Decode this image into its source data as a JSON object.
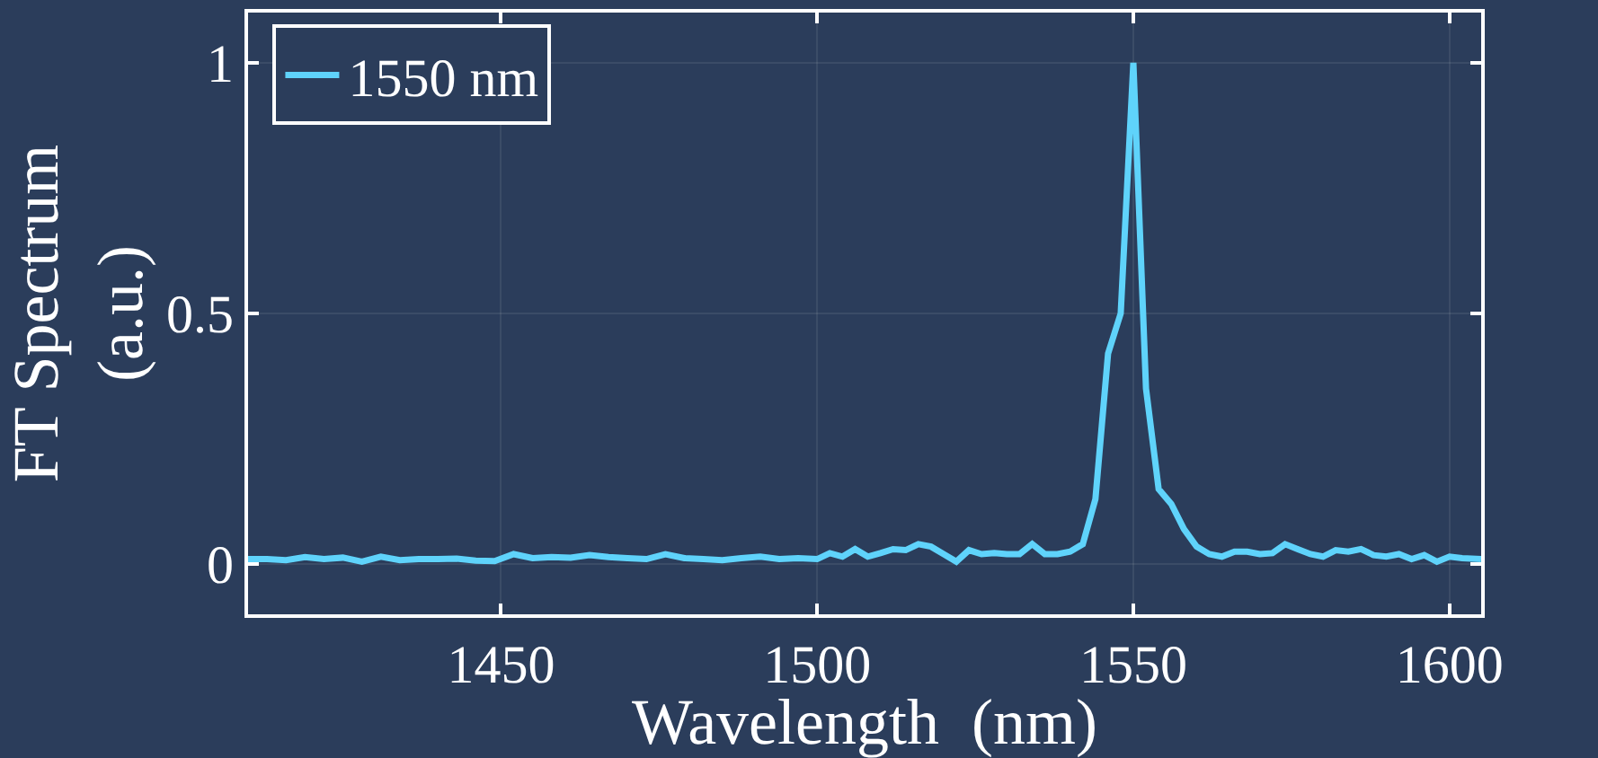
{
  "chart_data": {
    "type": "line",
    "xlabel": "Wavelength  (nm)",
    "ylabel": "FT Spectrum\n(a.u.)",
    "xlim": [
      1410,
      1605
    ],
    "ylim": [
      -0.1,
      1.1
    ],
    "xticks": [
      1450,
      1500,
      1550,
      1600
    ],
    "yticks": [
      0,
      0.5,
      1
    ],
    "grid": true,
    "legend": "top left",
    "line_style": "solid",
    "marker": "none",
    "series": [
      {
        "name": "1550 nm",
        "color": "#5fd3fb",
        "x": [
          1410,
          1413,
          1416,
          1419,
          1422,
          1425,
          1428,
          1431,
          1434,
          1437,
          1440,
          1443,
          1446,
          1449,
          1452,
          1455,
          1458,
          1461,
          1464,
          1467,
          1470,
          1473,
          1476,
          1479,
          1482,
          1485,
          1488,
          1491,
          1494,
          1497,
          1500,
          1502,
          1504,
          1506,
          1508,
          1510,
          1512,
          1514,
          1516,
          1518,
          1520,
          1522,
          1524,
          1526,
          1528,
          1530,
          1532,
          1534,
          1536,
          1538,
          1540,
          1542,
          1544,
          1546,
          1548,
          1550,
          1552,
          1554,
          1556,
          1558,
          1560,
          1562,
          1564,
          1566,
          1568,
          1570,
          1572,
          1574,
          1576,
          1578,
          1580,
          1582,
          1584,
          1586,
          1588,
          1590,
          1592,
          1594,
          1596,
          1598,
          1600,
          1602,
          1605
        ],
        "values": [
          0.01,
          0.01,
          0.008,
          0.014,
          0.01,
          0.013,
          0.005,
          0.015,
          0.008,
          0.01,
          0.01,
          0.011,
          0.007,
          0.006,
          0.02,
          0.012,
          0.014,
          0.013,
          0.018,
          0.014,
          0.012,
          0.01,
          0.02,
          0.012,
          0.01,
          0.008,
          0.012,
          0.015,
          0.01,
          0.012,
          0.01,
          0.022,
          0.015,
          0.03,
          0.015,
          0.022,
          0.03,
          0.028,
          0.04,
          0.035,
          0.02,
          0.005,
          0.028,
          0.02,
          0.022,
          0.02,
          0.02,
          0.04,
          0.02,
          0.02,
          0.025,
          0.04,
          0.13,
          0.42,
          0.5,
          1.0,
          0.35,
          0.15,
          0.12,
          0.07,
          0.035,
          0.02,
          0.015,
          0.025,
          0.025,
          0.02,
          0.022,
          0.04,
          0.03,
          0.02,
          0.015,
          0.028,
          0.025,
          0.03,
          0.018,
          0.015,
          0.02,
          0.01,
          0.018,
          0.005,
          0.015,
          0.012,
          0.01
        ]
      }
    ]
  }
}
